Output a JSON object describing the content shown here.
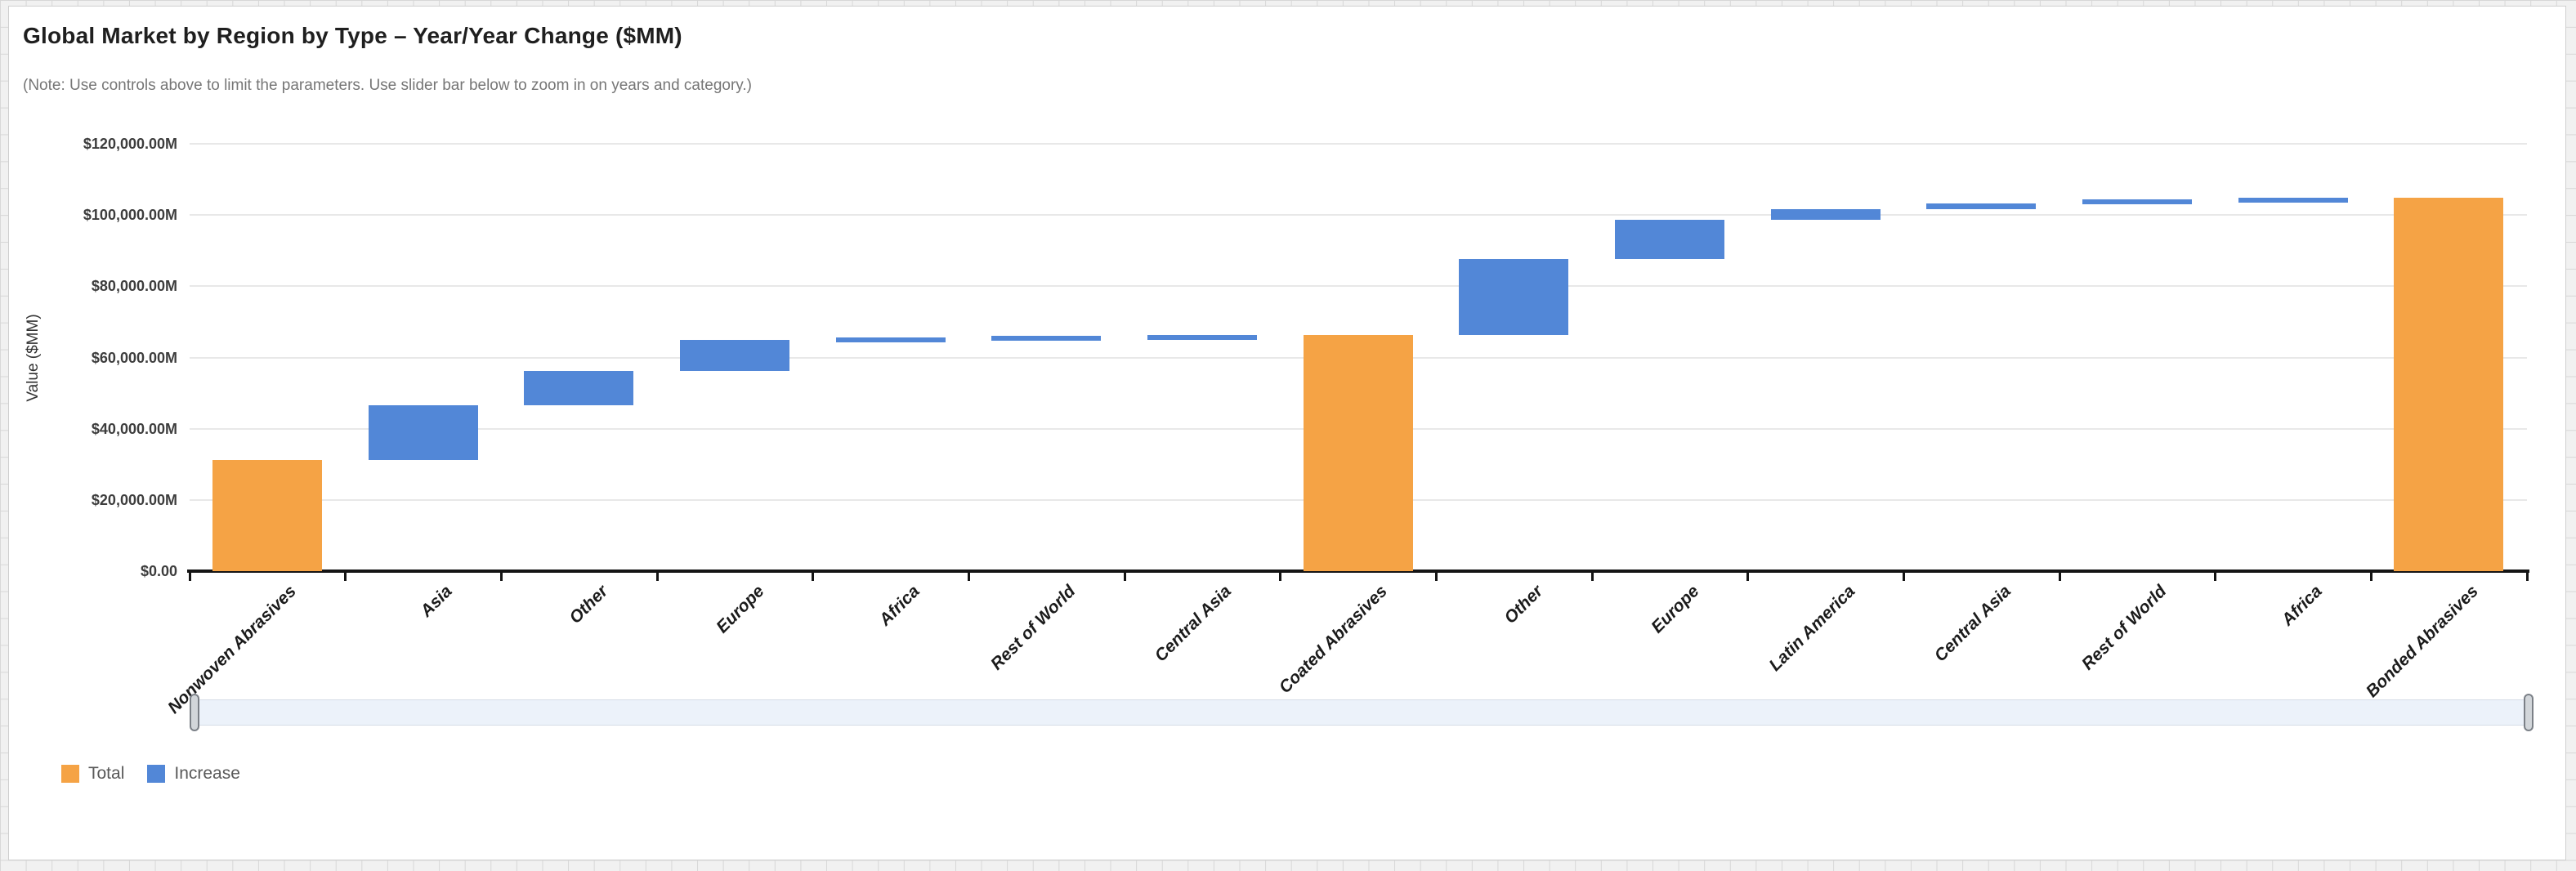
{
  "card": {
    "title": "Global Market by Region by Type – Year/Year Change ($MM)",
    "note": "(Note: Use controls above to limit the parameters. Use slider bar below to zoom in on years and category.)"
  },
  "legend": {
    "items": [
      {
        "label": "Total",
        "color": "#F5A345"
      },
      {
        "label": "Increase",
        "color": "#5287D7"
      }
    ]
  },
  "slider": {
    "track_color": "#ECF2FA",
    "handle_count": 2
  },
  "chart_data": {
    "type": "bar",
    "subtype": "waterfall",
    "title": "Global Market by Region by Type – Year/Year Change ($MM)",
    "xlabel": "",
    "ylabel": "Value ($MM)",
    "ylim": [
      0,
      120000
    ],
    "grid": true,
    "legend_position": "bottom-left",
    "yticks": [
      {
        "value": 0,
        "label": "$0.00"
      },
      {
        "value": 20000,
        "label": "$20,000.00M"
      },
      {
        "value": 40000,
        "label": "$40,000.00M"
      },
      {
        "value": 60000,
        "label": "$60,000.00M"
      },
      {
        "value": 80000,
        "label": "$80,000.00M"
      },
      {
        "value": 100000,
        "label": "$100,000.00M"
      },
      {
        "value": 120000,
        "label": "$120,000.00M"
      }
    ],
    "categories": [
      "Nonwoven Abrasives",
      "Asia",
      "Other",
      "Europe",
      "Africa",
      "Rest of World",
      "Central Asia",
      "Coated Abrasives",
      "Other",
      "Europe",
      "Latin America",
      "Central Asia",
      "Rest of World",
      "Africa",
      "Bonded Abrasives"
    ],
    "bars": [
      {
        "category": "Nonwoven Abrasives",
        "role": "total",
        "start": 0,
        "end": 31200,
        "value": 31200
      },
      {
        "category": "Asia",
        "role": "increase",
        "start": 31200,
        "end": 46600,
        "value": 15400
      },
      {
        "category": "Other",
        "role": "increase",
        "start": 46600,
        "end": 56300,
        "value": 9700
      },
      {
        "category": "Europe",
        "role": "increase",
        "start": 56300,
        "end": 65000,
        "value": 8700
      },
      {
        "category": "Africa",
        "role": "increase",
        "start": 65000,
        "end": 65700,
        "value": 700
      },
      {
        "category": "Rest of World",
        "role": "increase",
        "start": 65700,
        "end": 66100,
        "value": 400
      },
      {
        "category": "Central Asia",
        "role": "increase",
        "start": 66100,
        "end": 66300,
        "value": 200
      },
      {
        "category": "Coated Abrasives",
        "role": "total",
        "start": 0,
        "end": 66300,
        "value": 66300
      },
      {
        "category": "Other",
        "role": "increase",
        "start": 66300,
        "end": 87600,
        "value": 21300
      },
      {
        "category": "Europe",
        "role": "increase",
        "start": 87600,
        "end": 98600,
        "value": 11000
      },
      {
        "category": "Latin America",
        "role": "increase",
        "start": 98600,
        "end": 101700,
        "value": 3100
      },
      {
        "category": "Central Asia",
        "role": "increase",
        "start": 101700,
        "end": 103300,
        "value": 1600
      },
      {
        "category": "Rest of World",
        "role": "increase",
        "start": 103300,
        "end": 104400,
        "value": 1100
      },
      {
        "category": "Africa",
        "role": "increase",
        "start": 104400,
        "end": 104900,
        "value": 500
      },
      {
        "category": "Bonded Abrasives",
        "role": "total",
        "start": 0,
        "end": 104900,
        "value": 104900
      }
    ]
  }
}
